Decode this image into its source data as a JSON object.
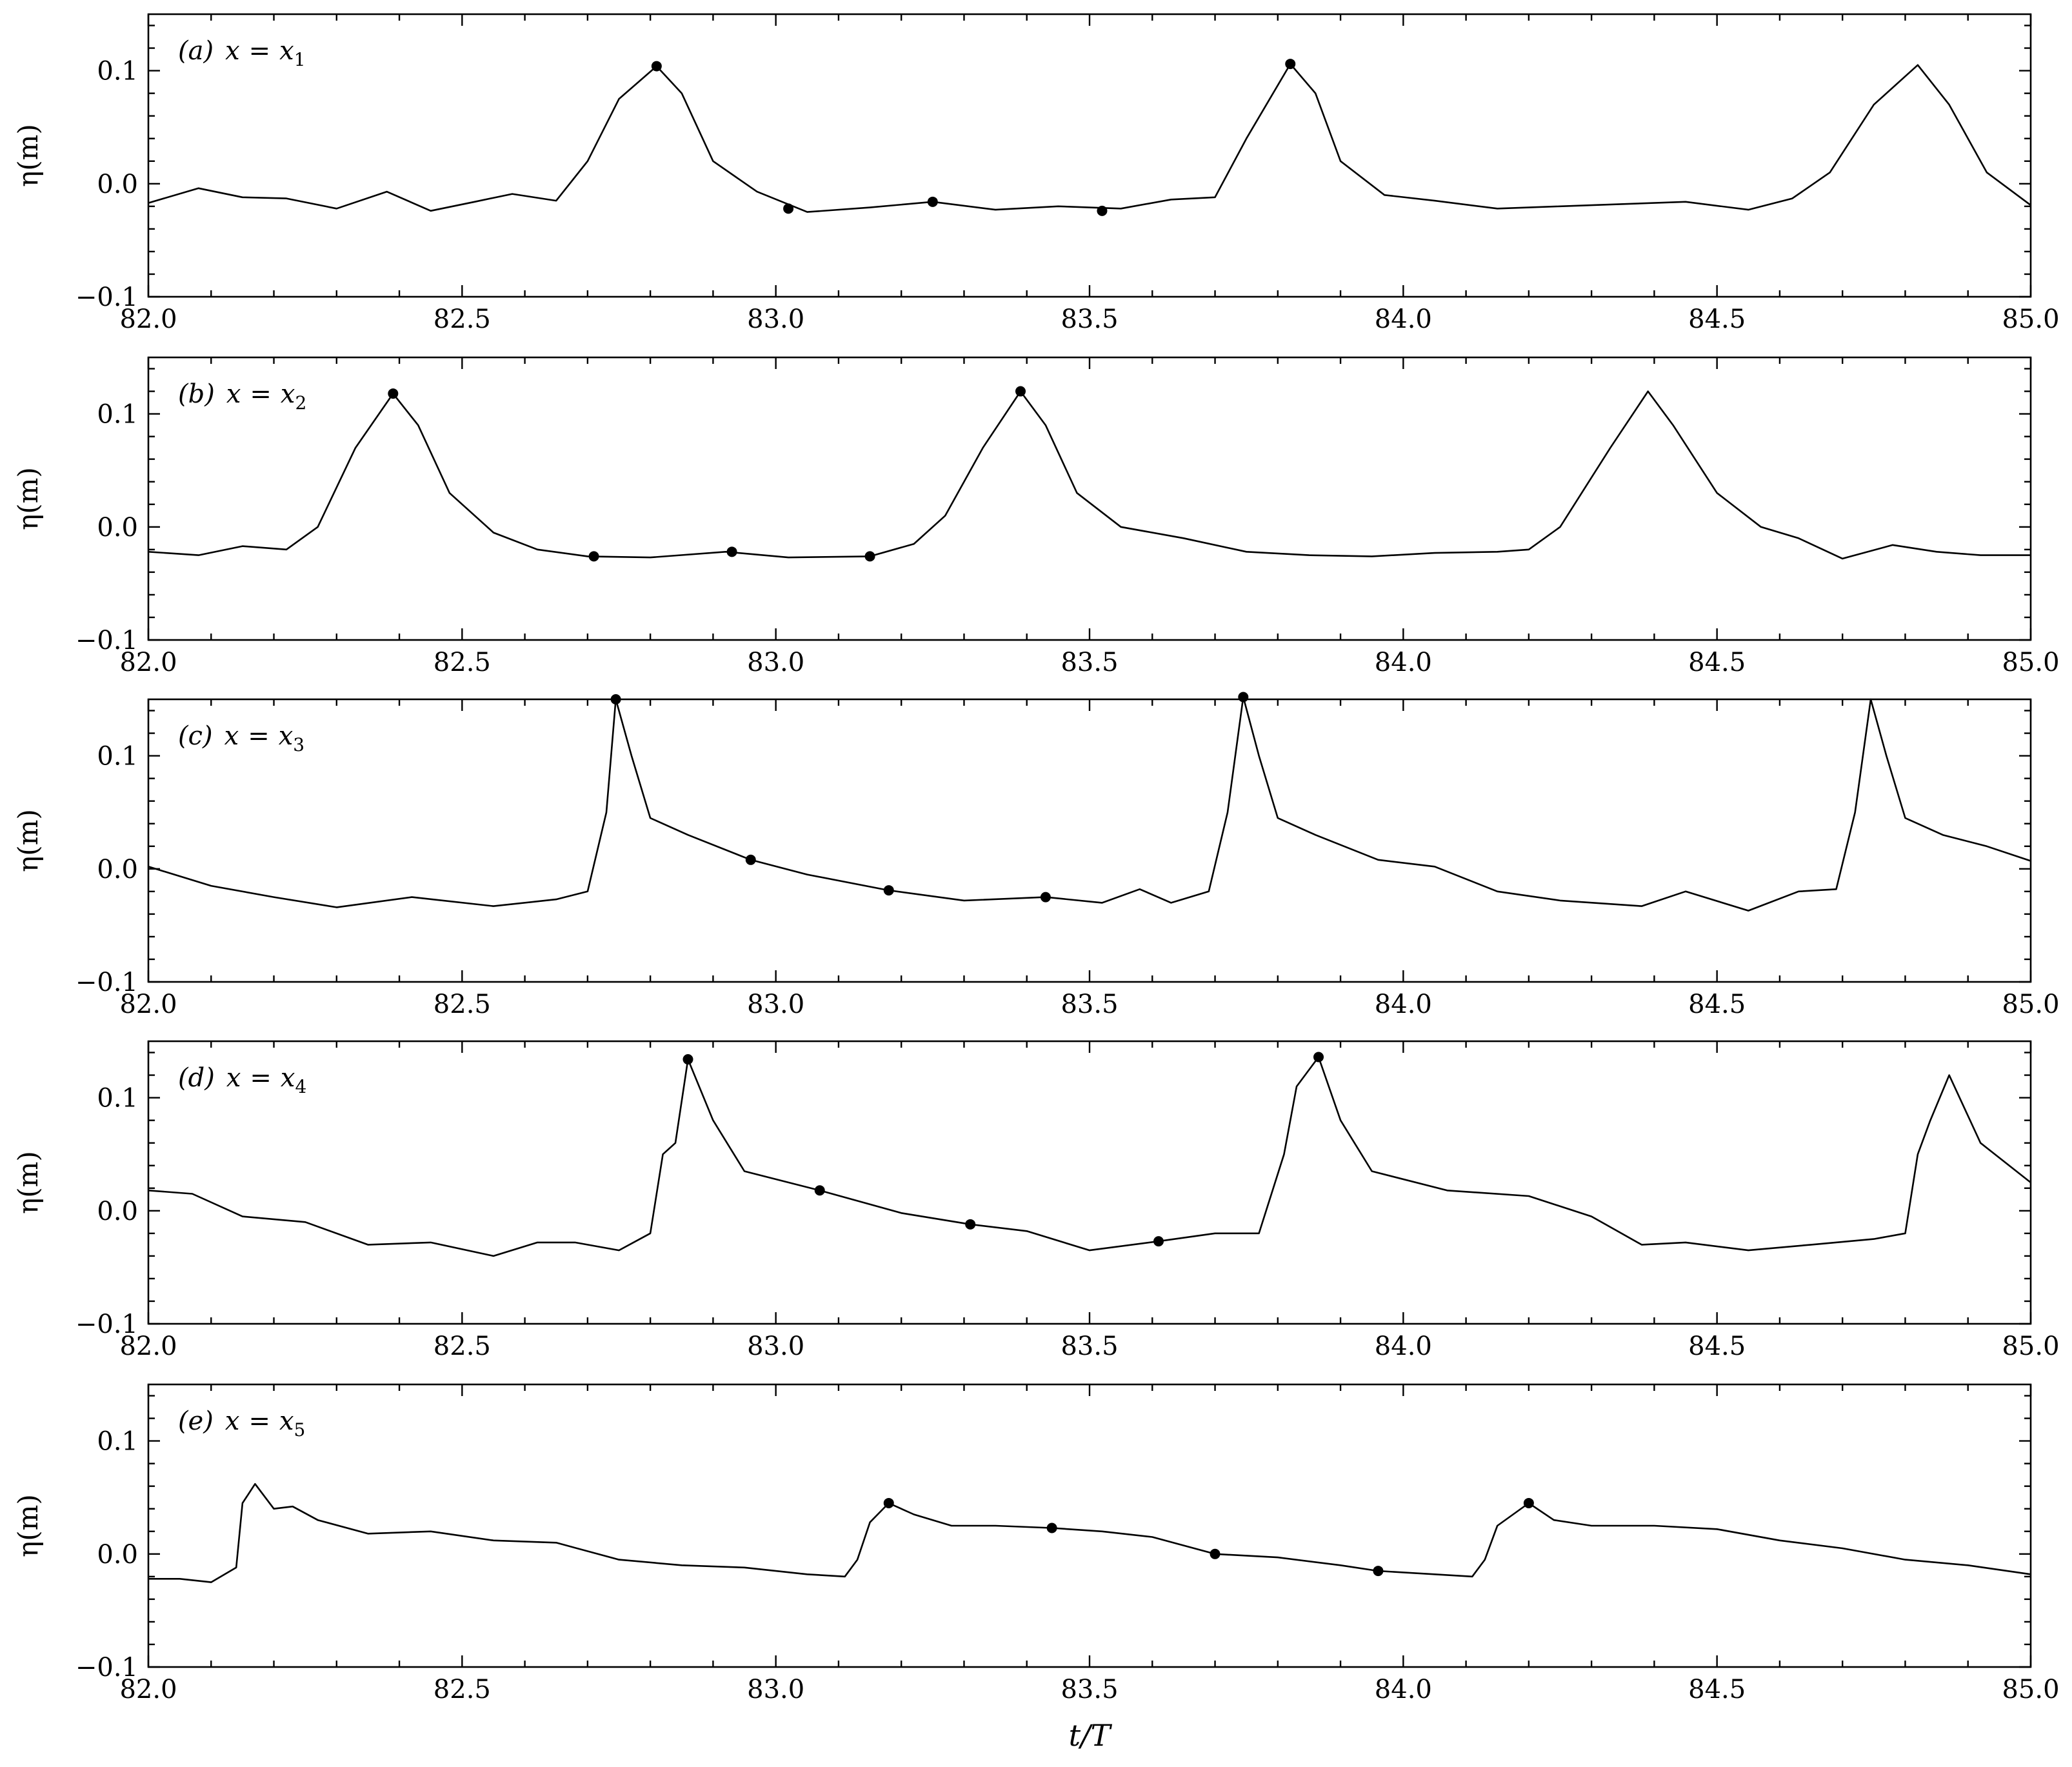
{
  "chart_data": [
    {
      "type": "line",
      "panel_label": "(a)",
      "equation": {
        "lhs": "x",
        "rhs": "x",
        "sub": "1"
      },
      "ylabel": "η(m)",
      "xlim": [
        82.0,
        85.0
      ],
      "ylim": [
        -0.1,
        0.15
      ],
      "xticks": [
        "82.0",
        "82.5",
        "83.0",
        "83.5",
        "84.0",
        "84.5",
        "85.0"
      ],
      "yticks": [
        "−0.1",
        "0.0",
        "0.1"
      ],
      "series": [
        {
          "x": [
            82.0,
            82.08,
            82.15,
            82.22,
            82.3,
            82.38,
            82.45,
            82.52,
            82.58,
            82.65,
            82.7,
            82.75,
            82.81,
            82.85,
            82.9,
            82.97,
            83.05,
            83.15,
            83.25,
            83.35,
            83.45,
            83.55,
            83.63,
            83.7,
            83.75,
            83.82,
            83.86,
            83.9,
            83.97,
            84.05,
            84.15,
            84.25,
            84.35,
            84.45,
            84.55,
            84.62,
            84.68,
            84.75,
            84.82,
            84.87,
            84.93,
            85.0
          ],
          "y": [
            -0.017,
            -0.004,
            -0.012,
            -0.013,
            -0.022,
            -0.007,
            -0.024,
            -0.016,
            -0.009,
            -0.015,
            0.02,
            0.075,
            0.104,
            0.08,
            0.02,
            -0.007,
            -0.025,
            -0.021,
            -0.016,
            -0.023,
            -0.02,
            -0.022,
            -0.014,
            -0.012,
            0.04,
            0.106,
            0.08,
            0.02,
            -0.01,
            -0.015,
            -0.022,
            -0.02,
            -0.018,
            -0.016,
            -0.023,
            -0.013,
            0.01,
            0.07,
            0.105,
            0.07,
            0.01,
            -0.019
          ]
        }
      ],
      "markers": {
        "x": [
          82.81,
          83.02,
          83.25,
          83.52,
          83.82
        ],
        "y": [
          0.104,
          -0.022,
          -0.016,
          -0.024,
          0.106
        ]
      }
    },
    {
      "type": "line",
      "panel_label": "(b)",
      "equation": {
        "lhs": "x",
        "rhs": "x",
        "sub": "2"
      },
      "ylabel": "η(m)",
      "xlim": [
        82.0,
        85.0
      ],
      "ylim": [
        -0.1,
        0.15
      ],
      "xticks": [
        "82.0",
        "82.5",
        "83.0",
        "83.5",
        "84.0",
        "84.5",
        "85.0"
      ],
      "yticks": [
        "−0.1",
        "0.0",
        "0.1"
      ],
      "series": [
        {
          "x": [
            82.0,
            82.08,
            82.15,
            82.22,
            82.27,
            82.33,
            82.39,
            82.43,
            82.48,
            82.55,
            82.62,
            82.7,
            82.8,
            82.92,
            83.02,
            83.15,
            83.22,
            83.27,
            83.33,
            83.39,
            83.43,
            83.48,
            83.55,
            83.65,
            83.75,
            83.85,
            83.95,
            84.05,
            84.15,
            84.2,
            84.25,
            84.33,
            84.39,
            84.43,
            84.5,
            84.57,
            84.63,
            84.7,
            84.78,
            84.85,
            84.92,
            85.0
          ],
          "y": [
            -0.022,
            -0.025,
            -0.017,
            -0.02,
            0.0,
            0.07,
            0.118,
            0.09,
            0.03,
            -0.005,
            -0.02,
            -0.026,
            -0.027,
            -0.022,
            -0.027,
            -0.026,
            -0.015,
            0.01,
            0.07,
            0.12,
            0.09,
            0.03,
            0.0,
            -0.01,
            -0.022,
            -0.025,
            -0.026,
            -0.023,
            -0.022,
            -0.02,
            0.0,
            0.07,
            0.12,
            0.09,
            0.03,
            0.0,
            -0.01,
            -0.028,
            -0.016,
            -0.022,
            -0.025,
            -0.025
          ]
        }
      ],
      "markers": {
        "x": [
          82.39,
          82.71,
          82.93,
          83.15,
          83.39
        ],
        "y": [
          0.118,
          -0.026,
          -0.022,
          -0.026,
          0.12
        ]
      }
    },
    {
      "type": "line",
      "panel_label": "(c)",
      "equation": {
        "lhs": "x",
        "rhs": "x",
        "sub": "3"
      },
      "ylabel": "η(m)",
      "xlim": [
        82.0,
        85.0
      ],
      "ylim": [
        -0.1,
        0.15
      ],
      "xticks": [
        "82.0",
        "82.5",
        "83.0",
        "83.5",
        "84.0",
        "84.5",
        "85.0"
      ],
      "yticks": [
        "−0.1",
        "0.0",
        "0.1"
      ],
      "series": [
        {
          "x": [
            82.0,
            82.1,
            82.2,
            82.3,
            82.42,
            82.55,
            82.65,
            82.7,
            82.73,
            82.745,
            82.77,
            82.8,
            82.86,
            82.96,
            83.05,
            83.18,
            83.3,
            83.43,
            83.52,
            83.58,
            83.63,
            83.69,
            83.72,
            83.745,
            83.77,
            83.8,
            83.86,
            83.96,
            84.05,
            84.15,
            84.25,
            84.38,
            84.45,
            84.55,
            84.63,
            84.69,
            84.72,
            84.745,
            84.77,
            84.8,
            84.86,
            84.93,
            85.0
          ],
          "y": [
            0.002,
            -0.015,
            -0.025,
            -0.034,
            -0.025,
            -0.033,
            -0.027,
            -0.02,
            0.05,
            0.15,
            0.1,
            0.045,
            0.03,
            0.008,
            -0.005,
            -0.019,
            -0.028,
            -0.025,
            -0.03,
            -0.018,
            -0.03,
            -0.02,
            0.05,
            0.152,
            0.1,
            0.045,
            0.03,
            0.008,
            0.002,
            -0.02,
            -0.028,
            -0.033,
            -0.02,
            -0.037,
            -0.02,
            -0.018,
            0.05,
            0.15,
            0.1,
            0.045,
            0.03,
            0.02,
            0.007
          ]
        }
      ],
      "markers": {
        "x": [
          82.745,
          82.96,
          83.18,
          83.43,
          83.745
        ],
        "y": [
          0.15,
          0.008,
          -0.019,
          -0.025,
          0.152
        ]
      }
    },
    {
      "type": "line",
      "panel_label": "(d)",
      "equation": {
        "lhs": "x",
        "rhs": "x",
        "sub": "4"
      },
      "ylabel": "η(m)",
      "xlim": [
        82.0,
        85.0
      ],
      "ylim": [
        -0.1,
        0.15
      ],
      "xticks": [
        "82.0",
        "82.5",
        "83.0",
        "83.5",
        "84.0",
        "84.5",
        "85.0"
      ],
      "yticks": [
        "−0.1",
        "0.0",
        "0.1"
      ],
      "series": [
        {
          "x": [
            82.0,
            82.07,
            82.15,
            82.25,
            82.35,
            82.45,
            82.55,
            82.62,
            82.68,
            82.75,
            82.8,
            82.82,
            82.84,
            82.86,
            82.9,
            82.95,
            83.07,
            83.2,
            83.31,
            83.4,
            83.5,
            83.61,
            83.7,
            83.77,
            83.81,
            83.83,
            83.865,
            83.9,
            83.95,
            84.07,
            84.2,
            84.3,
            84.38,
            84.45,
            84.55,
            84.65,
            84.75,
            84.8,
            84.82,
            84.84,
            84.87,
            84.92,
            85.0
          ],
          "y": [
            0.018,
            0.015,
            -0.005,
            -0.01,
            -0.03,
            -0.028,
            -0.04,
            -0.028,
            -0.028,
            -0.035,
            -0.02,
            0.05,
            0.06,
            0.134,
            0.08,
            0.035,
            0.018,
            -0.002,
            -0.012,
            -0.018,
            -0.035,
            -0.027,
            -0.02,
            -0.02,
            0.05,
            0.11,
            0.136,
            0.08,
            0.035,
            0.018,
            0.013,
            -0.005,
            -0.03,
            -0.028,
            -0.035,
            -0.03,
            -0.025,
            -0.02,
            0.05,
            0.08,
            0.12,
            0.06,
            0.025
          ]
        }
      ],
      "markers": {
        "x": [
          82.86,
          83.07,
          83.31,
          83.61,
          83.865
        ],
        "y": [
          0.134,
          0.018,
          -0.012,
          -0.027,
          0.136
        ]
      }
    },
    {
      "type": "line",
      "panel_label": "(e)",
      "equation": {
        "lhs": "x",
        "rhs": "x",
        "sub": "5"
      },
      "ylabel": "η(m)",
      "xlim": [
        82.0,
        85.0
      ],
      "ylim": [
        -0.1,
        0.15
      ],
      "xticks": [
        "82.0",
        "82.5",
        "83.0",
        "83.5",
        "84.0",
        "84.5",
        "85.0"
      ],
      "yticks": [
        "−0.1",
        "0.0",
        "0.1"
      ],
      "xlabel": "t/T",
      "series": [
        {
          "x": [
            82.0,
            82.05,
            82.1,
            82.14,
            82.15,
            82.17,
            82.2,
            82.23,
            82.27,
            82.35,
            82.45,
            82.55,
            82.65,
            82.75,
            82.85,
            82.95,
            83.05,
            83.11,
            83.13,
            83.15,
            83.18,
            83.22,
            83.28,
            83.35,
            83.44,
            83.52,
            83.6,
            83.7,
            83.8,
            83.9,
            83.96,
            84.05,
            84.11,
            84.13,
            84.15,
            84.2,
            84.24,
            84.3,
            84.4,
            84.5,
            84.6,
            84.7,
            84.8,
            84.9,
            85.0
          ],
          "y": [
            -0.022,
            -0.022,
            -0.025,
            -0.012,
            0.045,
            0.062,
            0.04,
            0.042,
            0.03,
            0.018,
            0.02,
            0.012,
            0.01,
            -0.005,
            -0.01,
            -0.012,
            -0.018,
            -0.02,
            -0.005,
            0.028,
            0.045,
            0.035,
            0.025,
            0.025,
            0.023,
            0.02,
            0.015,
            0.0,
            -0.003,
            -0.01,
            -0.015,
            -0.018,
            -0.02,
            -0.005,
            0.025,
            0.045,
            0.03,
            0.025,
            0.025,
            0.022,
            0.012,
            0.005,
            -0.005,
            -0.01,
            -0.018
          ]
        }
      ],
      "markers": {
        "x": [
          83.18,
          83.44,
          83.7,
          83.96,
          84.2
        ],
        "y": [
          0.045,
          0.023,
          0.0,
          -0.015,
          0.045
        ]
      }
    }
  ]
}
